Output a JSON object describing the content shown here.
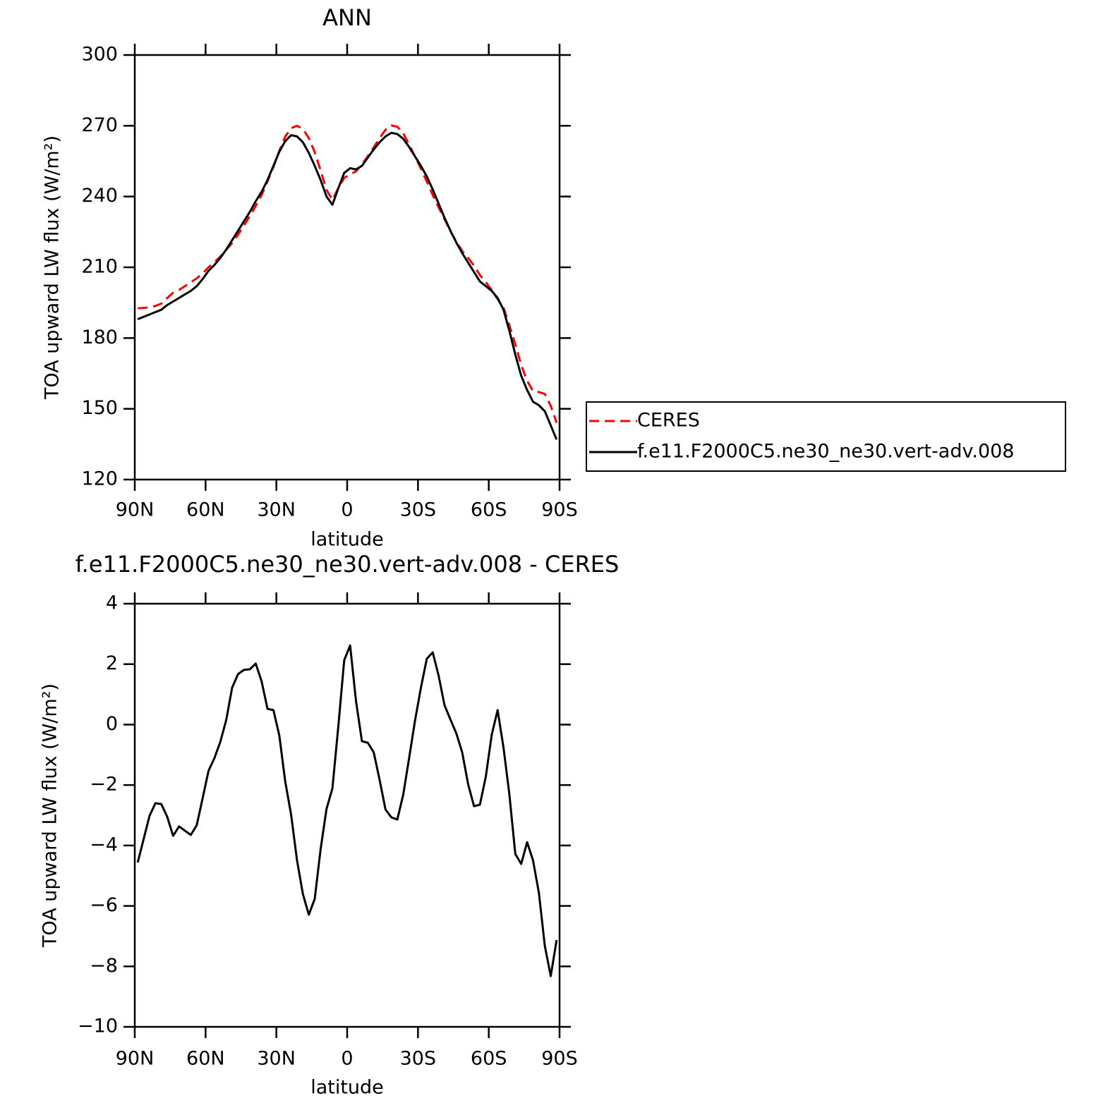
{
  "chart_data": [
    {
      "type": "line",
      "title": "ANN",
      "xlabel": "latitude",
      "ylabel": "TOA upward LW flux (W/m²)",
      "x": [
        88.75,
        86.25,
        83.75,
        81.25,
        78.75,
        76.25,
        73.75,
        71.25,
        68.75,
        66.25,
        63.75,
        61.25,
        58.75,
        56.25,
        53.75,
        51.25,
        48.75,
        46.25,
        43.75,
        41.25,
        38.75,
        36.25,
        33.75,
        31.25,
        28.75,
        26.25,
        23.75,
        21.25,
        18.75,
        16.25,
        13.75,
        11.25,
        8.75,
        6.25,
        3.75,
        1.25,
        -1.25,
        -3.75,
        -6.25,
        -8.75,
        -11.25,
        -13.75,
        -16.25,
        -18.75,
        -21.25,
        -23.75,
        -26.25,
        -28.75,
        -31.25,
        -33.75,
        -36.25,
        -38.75,
        -41.25,
        -43.75,
        -46.25,
        -48.75,
        -51.25,
        -53.75,
        -56.25,
        -58.75,
        -61.25,
        -63.75,
        -66.25,
        -68.75,
        -71.25,
        -73.75,
        -76.25,
        -78.75,
        -81.25,
        -83.75,
        -86.25,
        -88.75
      ],
      "series": [
        {
          "name": "CERES",
          "color": "#ff0000",
          "dash": "dashed",
          "values": [
            192.6,
            192.8,
            193.0,
            193.6,
            194.6,
            197.0,
            199.2,
            200.4,
            202.0,
            203.7,
            205.3,
            207.4,
            210.0,
            212.1,
            214.6,
            217.4,
            220.3,
            223.8,
            227.7,
            231.7,
            236.0,
            240.6,
            246.5,
            252.5,
            259.4,
            265.4,
            269.0,
            270.0,
            268.6,
            264.8,
            258.8,
            251.1,
            242.8,
            238.6,
            243.6,
            247.9,
            249.4,
            250.7,
            253.6,
            257.1,
            260.9,
            264.8,
            268.3,
            270.1,
            269.6,
            266.8,
            262.1,
            256.9,
            251.8,
            246.3,
            240.6,
            235.4,
            230.4,
            225.3,
            220.8,
            216.9,
            214.0,
            210.7,
            206.7,
            203.7,
            200.3,
            196.5,
            192.8,
            185.3,
            177.3,
            168.6,
            161.9,
            157.5,
            157.1,
            156.3,
            151.3,
            144.1
          ]
        },
        {
          "name": "f.e11.F2000C5.ne30_ne30.vert-adv.008",
          "color": "#000000",
          "dash": "solid",
          "values": [
            188,
            189,
            190,
            191,
            192,
            194,
            195.5,
            197,
            198.5,
            200,
            202,
            205,
            208.5,
            211,
            214,
            217.5,
            221.5,
            225.5,
            229.5,
            233.5,
            238,
            242,
            247,
            253,
            259,
            263.5,
            266,
            265.5,
            263,
            258.5,
            253,
            247,
            240,
            236.5,
            243.5,
            250,
            252,
            251.5,
            253,
            256.5,
            260,
            263,
            265.5,
            267,
            266.5,
            264.5,
            261,
            257,
            253,
            248.5,
            243,
            237,
            231,
            225.5,
            220.5,
            216,
            212,
            208,
            204,
            202,
            200,
            197,
            192,
            183,
            173,
            164,
            158,
            153,
            151.5,
            149,
            143,
            137
          ]
        }
      ],
      "xlim": [
        90,
        -90
      ],
      "xticks": [
        {
          "value": 90,
          "label": "90N"
        },
        {
          "value": 60,
          "label": "60N"
        },
        {
          "value": 30,
          "label": "30N"
        },
        0,
        {
          "value": -30,
          "label": "30S"
        },
        {
          "value": -60,
          "label": "60S"
        },
        {
          "value": -90,
          "label": "90S"
        }
      ],
      "ylim": [
        120,
        300
      ],
      "yticks": [
        120,
        150,
        180,
        210,
        240,
        270,
        300
      ],
      "legend": "right"
    },
    {
      "type": "line",
      "title": "f.e11.F2000C5.ne30_ne30.vert-adv.008 - CERES",
      "xlabel": "latitude",
      "ylabel": "TOA upward LW flux (W/m²)",
      "x": [
        88.75,
        86.25,
        83.75,
        81.25,
        78.75,
        76.25,
        73.75,
        71.25,
        68.75,
        66.25,
        63.75,
        61.25,
        58.75,
        56.25,
        53.75,
        51.25,
        48.75,
        46.25,
        43.75,
        41.25,
        38.75,
        36.25,
        33.75,
        31.25,
        28.75,
        26.25,
        23.75,
        21.25,
        18.75,
        16.25,
        13.75,
        11.25,
        8.75,
        6.25,
        3.75,
        1.25,
        -1.25,
        -3.75,
        -6.25,
        -8.75,
        -11.25,
        -13.75,
        -16.25,
        -18.75,
        -21.25,
        -23.75,
        -26.25,
        -28.75,
        -31.25,
        -33.75,
        -36.25,
        -38.75,
        -41.25,
        -43.75,
        -46.25,
        -48.75,
        -51.25,
        -53.75,
        -56.25,
        -58.75,
        -61.25,
        -63.75,
        -66.25,
        -68.75,
        -71.25,
        -73.75,
        -76.25,
        -78.75,
        -81.25,
        -83.75,
        -86.25,
        -88.75
      ],
      "values": [
        -4.56,
        -3.79,
        -3.02,
        -2.6,
        -2.63,
        -3.05,
        -3.68,
        -3.37,
        -3.51,
        -3.65,
        -3.33,
        -2.44,
        -1.53,
        -1.11,
        -0.57,
        0.15,
        1.22,
        1.67,
        1.81,
        1.83,
        2.02,
        1.43,
        0.52,
        0.48,
        -0.36,
        -1.88,
        -2.98,
        -4.49,
        -5.61,
        -6.29,
        -5.77,
        -4.12,
        -2.79,
        -2.11,
        -0.06,
        2.13,
        2.62,
        0.78,
        -0.55,
        -0.6,
        -0.92,
        -1.83,
        -2.81,
        -3.07,
        -3.14,
        -2.32,
        -1.11,
        0.13,
        1.22,
        2.18,
        2.39,
        1.62,
        0.64,
        0.17,
        -0.29,
        -0.92,
        -1.97,
        -2.7,
        -2.65,
        -1.72,
        -0.34,
        0.48,
        -0.76,
        -2.32,
        -4.28,
        -4.61,
        -3.89,
        -4.49,
        -5.57,
        -7.32,
        -8.32,
        -7.13
      ],
      "color": "#000000",
      "xlim": [
        90,
        -90
      ],
      "xticks": [
        {
          "value": 90,
          "label": "90N"
        },
        {
          "value": 60,
          "label": "60N"
        },
        {
          "value": 30,
          "label": "30N"
        },
        0,
        {
          "value": -30,
          "label": "30S"
        },
        {
          "value": -60,
          "label": "60S"
        },
        {
          "value": -90,
          "label": "90S"
        }
      ],
      "ylim": [
        -10,
        4
      ],
      "yticks": [
        {
          "value": -10,
          "label": "−10"
        },
        {
          "value": -8,
          "label": "−8"
        },
        {
          "value": -6,
          "label": "−6"
        },
        {
          "value": -4,
          "label": "−4"
        },
        {
          "value": -2,
          "label": "−2"
        },
        0,
        2,
        4
      ]
    }
  ]
}
